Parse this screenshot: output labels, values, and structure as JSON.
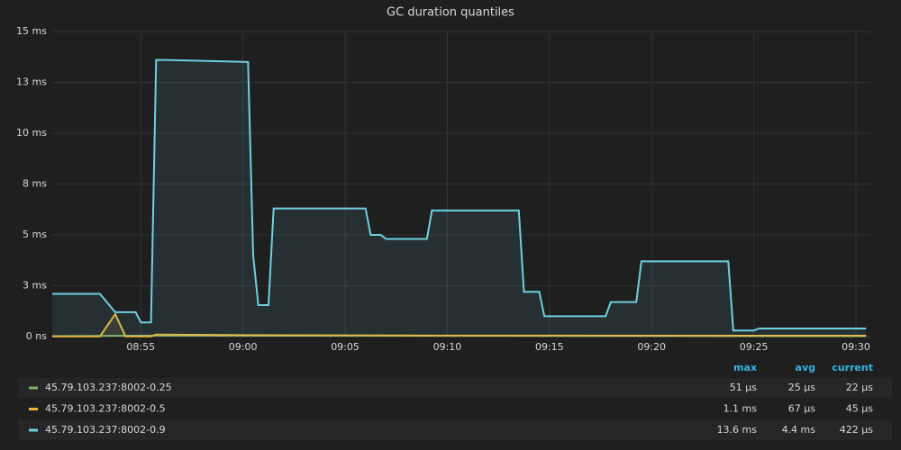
{
  "chart_data": {
    "type": "line",
    "title": "GC duration quantiles",
    "xlim": [
      "08:50:40",
      "09:30:45"
    ],
    "xticks": [
      "08:55",
      "09:00",
      "09:05",
      "09:10",
      "09:15",
      "09:20",
      "09:25",
      "09:30"
    ],
    "ylim": [
      0,
      15
    ],
    "yticks": [
      {
        "value": 0,
        "label": "0 ns"
      },
      {
        "value": 2.5,
        "label": "3 ms"
      },
      {
        "value": 5,
        "label": "5 ms"
      },
      {
        "value": 7.5,
        "label": "8 ms"
      },
      {
        "value": 10,
        "label": "10 ms"
      },
      {
        "value": 12.5,
        "label": "13 ms"
      },
      {
        "value": 15,
        "label": "15 ms"
      }
    ],
    "grid": true,
    "legend_columns": [
      "max",
      "avg",
      "current"
    ],
    "series": [
      {
        "name": "45.79.103.237:8002-0.25",
        "color": "#7eb26d",
        "x": [
          "08:50:40",
          "08:55:45",
          "09:30:30"
        ],
        "values": [
          0.02,
          0.05,
          0.022
        ],
        "stats": [
          "51 µs",
          "25 µs",
          "22 µs"
        ]
      },
      {
        "name": "45.79.103.237:8002-0.5",
        "color": "#eab839",
        "x": [
          "08:50:40",
          "08:53:00",
          "08:53:45",
          "08:54:15",
          "08:55:30",
          "08:55:45",
          "09:00:00",
          "09:10:00",
          "09:30:30"
        ],
        "values": [
          0.01,
          0.01,
          1.1,
          0.01,
          0.01,
          0.1,
          0.07,
          0.05,
          0.045
        ],
        "stats": [
          "1.1 ms",
          "67 µs",
          "45 µs"
        ]
      },
      {
        "name": "45.79.103.237:8002-0.9",
        "color": "#6ed0e0",
        "x": [
          "08:50:40",
          "08:53:00",
          "08:53:45",
          "08:54:45",
          "08:55:00",
          "08:55:30",
          "08:55:45",
          "08:56:15",
          "09:00:15",
          "09:00:30",
          "09:00:45",
          "09:01:15",
          "09:01:30",
          "09:06:00",
          "09:06:15",
          "09:06:45",
          "09:07:00",
          "09:09:00",
          "09:09:15",
          "09:13:30",
          "09:13:45",
          "09:14:30",
          "09:14:45",
          "09:17:45",
          "09:18:00",
          "09:19:15",
          "09:19:30",
          "09:23:45",
          "09:24:00",
          "09:25:00",
          "09:25:15",
          "09:30:30"
        ],
        "values": [
          2.1,
          2.1,
          1.2,
          1.2,
          0.7,
          0.7,
          13.6,
          13.6,
          13.5,
          4.0,
          1.55,
          1.55,
          6.3,
          6.3,
          5.0,
          5.0,
          4.8,
          4.8,
          6.2,
          6.2,
          2.2,
          2.2,
          1.0,
          1.0,
          1.7,
          1.7,
          3.7,
          3.7,
          0.3,
          0.3,
          0.4,
          0.4
        ],
        "stats": [
          "13.6 ms",
          "4.4 ms",
          "422 µs"
        ]
      }
    ]
  }
}
